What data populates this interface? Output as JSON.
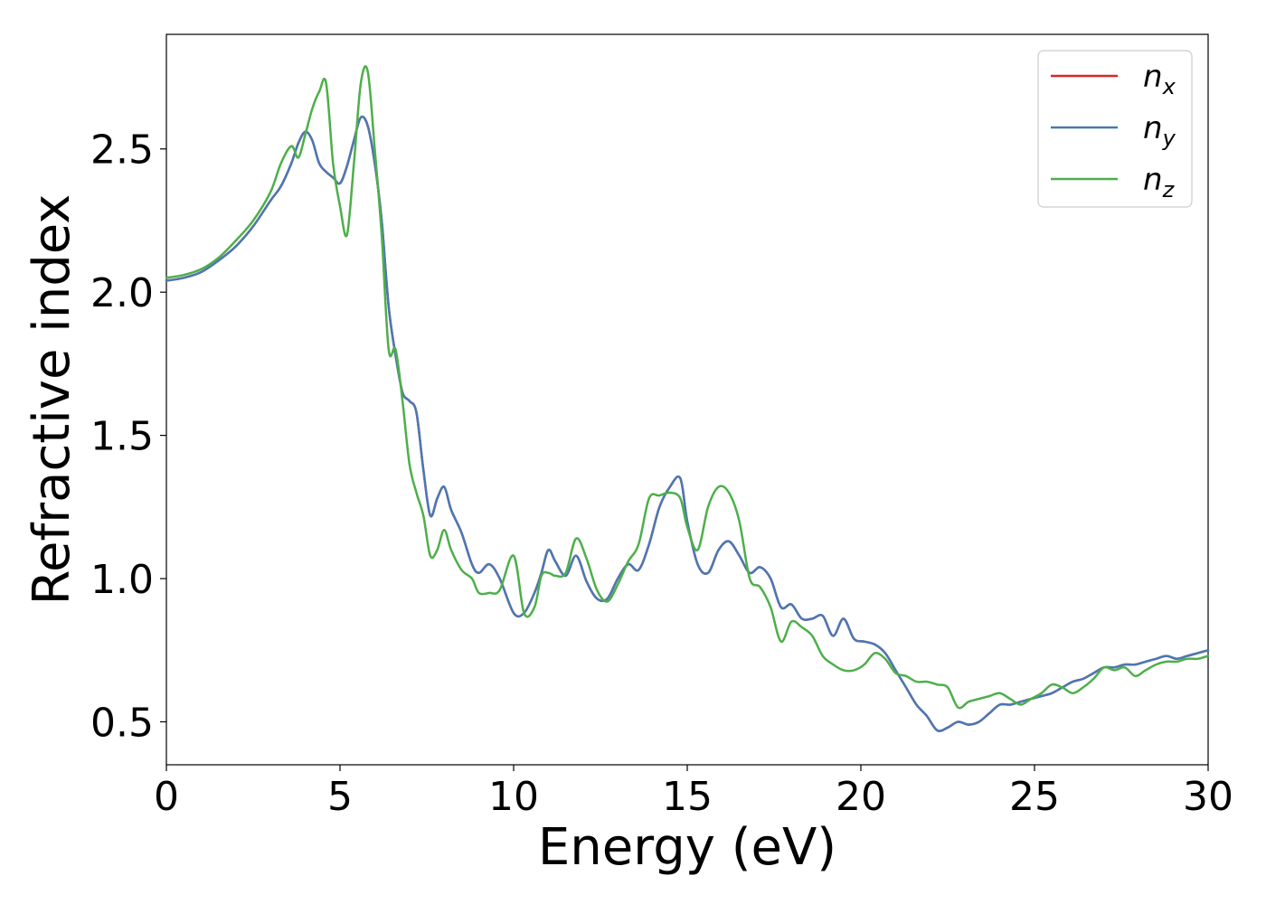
{
  "chart_data": {
    "type": "line",
    "xlabel": "Energy (eV)",
    "ylabel": "Refractive index",
    "xlim": [
      0,
      30
    ],
    "ylim": [
      0.35,
      2.9
    ],
    "xticks": [
      "0",
      "5",
      "10",
      "15",
      "20",
      "25",
      "30"
    ],
    "yticks": [
      "0.5",
      "1.0",
      "1.5",
      "2.0",
      "2.5"
    ],
    "grid": false,
    "legend_position": "top-right",
    "series": [
      {
        "name": "n",
        "subscript": "x",
        "color": "#d62728",
        "x": [
          0,
          0.5,
          1,
          1.5,
          2,
          2.5,
          3,
          3.3,
          3.6,
          3.8,
          4.0,
          4.2,
          4.4,
          4.6,
          4.8,
          5.0,
          5.2,
          5.4,
          5.6,
          5.8,
          6.0,
          6.2,
          6.4,
          6.6,
          6.8,
          7.0,
          7.2,
          7.4,
          7.6,
          7.8,
          8.0,
          8.2,
          8.5,
          8.8,
          9.0,
          9.3,
          9.6,
          10.0,
          10.3,
          10.6,
          10.8,
          11.0,
          11.2,
          11.5,
          11.8,
          12.1,
          12.4,
          12.7,
          13.0,
          13.3,
          13.6,
          13.9,
          14.2,
          14.5,
          14.8,
          15.0,
          15.3,
          15.6,
          15.9,
          16.2,
          16.5,
          16.8,
          17.1,
          17.4,
          17.7,
          18.0,
          18.3,
          18.6,
          18.9,
          19.2,
          19.5,
          19.8,
          20.1,
          20.4,
          20.7,
          21.0,
          21.3,
          21.6,
          21.9,
          22.2,
          22.5,
          22.8,
          23.1,
          23.4,
          23.7,
          24.0,
          24.3,
          24.6,
          24.9,
          25.2,
          25.5,
          25.8,
          26.1,
          26.4,
          26.7,
          27.0,
          27.3,
          27.6,
          27.9,
          28.2,
          28.5,
          28.8,
          29.1,
          29.4,
          29.7,
          30.0
        ],
        "y": [
          2.04,
          2.05,
          2.07,
          2.11,
          2.16,
          2.23,
          2.32,
          2.37,
          2.45,
          2.52,
          2.56,
          2.53,
          2.45,
          2.42,
          2.4,
          2.38,
          2.44,
          2.53,
          2.61,
          2.58,
          2.45,
          2.25,
          1.95,
          1.78,
          1.65,
          1.62,
          1.58,
          1.38,
          1.22,
          1.28,
          1.32,
          1.24,
          1.16,
          1.05,
          1.02,
          1.05,
          1.0,
          0.88,
          0.88,
          0.95,
          1.02,
          1.1,
          1.06,
          1.01,
          1.08,
          0.99,
          0.93,
          0.93,
          1.0,
          1.05,
          1.03,
          1.12,
          1.25,
          1.32,
          1.35,
          1.2,
          1.05,
          1.02,
          1.1,
          1.13,
          1.08,
          1.02,
          1.04,
          1.0,
          0.9,
          0.91,
          0.86,
          0.86,
          0.87,
          0.8,
          0.86,
          0.79,
          0.78,
          0.77,
          0.74,
          0.68,
          0.62,
          0.56,
          0.52,
          0.47,
          0.48,
          0.5,
          0.49,
          0.5,
          0.53,
          0.56,
          0.56,
          0.57,
          0.58,
          0.59,
          0.6,
          0.62,
          0.64,
          0.65,
          0.67,
          0.69,
          0.69,
          0.7,
          0.7,
          0.71,
          0.72,
          0.73,
          0.72,
          0.73,
          0.74,
          0.75
        ]
      },
      {
        "name": "n",
        "subscript": "y",
        "color": "#4a78b5",
        "x": [
          0,
          0.5,
          1,
          1.5,
          2,
          2.5,
          3,
          3.3,
          3.6,
          3.8,
          4.0,
          4.2,
          4.4,
          4.6,
          4.8,
          5.0,
          5.2,
          5.4,
          5.6,
          5.8,
          6.0,
          6.2,
          6.4,
          6.6,
          6.8,
          7.0,
          7.2,
          7.4,
          7.6,
          7.8,
          8.0,
          8.2,
          8.5,
          8.8,
          9.0,
          9.3,
          9.6,
          10.0,
          10.3,
          10.6,
          10.8,
          11.0,
          11.2,
          11.5,
          11.8,
          12.1,
          12.4,
          12.7,
          13.0,
          13.3,
          13.6,
          13.9,
          14.2,
          14.5,
          14.8,
          15.0,
          15.3,
          15.6,
          15.9,
          16.2,
          16.5,
          16.8,
          17.1,
          17.4,
          17.7,
          18.0,
          18.3,
          18.6,
          18.9,
          19.2,
          19.5,
          19.8,
          20.1,
          20.4,
          20.7,
          21.0,
          21.3,
          21.6,
          21.9,
          22.2,
          22.5,
          22.8,
          23.1,
          23.4,
          23.7,
          24.0,
          24.3,
          24.6,
          24.9,
          25.2,
          25.5,
          25.8,
          26.1,
          26.4,
          26.7,
          27.0,
          27.3,
          27.6,
          27.9,
          28.2,
          28.5,
          28.8,
          29.1,
          29.4,
          29.7,
          30.0
        ],
        "y": [
          2.04,
          2.05,
          2.07,
          2.11,
          2.16,
          2.23,
          2.32,
          2.37,
          2.45,
          2.52,
          2.56,
          2.53,
          2.45,
          2.42,
          2.4,
          2.38,
          2.44,
          2.53,
          2.61,
          2.58,
          2.45,
          2.25,
          1.95,
          1.78,
          1.65,
          1.62,
          1.58,
          1.38,
          1.22,
          1.28,
          1.32,
          1.24,
          1.16,
          1.05,
          1.02,
          1.05,
          1.0,
          0.88,
          0.88,
          0.95,
          1.02,
          1.1,
          1.06,
          1.01,
          1.08,
          0.99,
          0.93,
          0.93,
          1.0,
          1.05,
          1.03,
          1.12,
          1.25,
          1.32,
          1.35,
          1.2,
          1.05,
          1.02,
          1.1,
          1.13,
          1.08,
          1.02,
          1.04,
          1.0,
          0.9,
          0.91,
          0.86,
          0.86,
          0.87,
          0.8,
          0.86,
          0.79,
          0.78,
          0.77,
          0.74,
          0.68,
          0.62,
          0.56,
          0.52,
          0.47,
          0.48,
          0.5,
          0.49,
          0.5,
          0.53,
          0.56,
          0.56,
          0.57,
          0.58,
          0.59,
          0.6,
          0.62,
          0.64,
          0.65,
          0.67,
          0.69,
          0.69,
          0.7,
          0.7,
          0.71,
          0.72,
          0.73,
          0.72,
          0.73,
          0.74,
          0.75
        ]
      },
      {
        "name": "n",
        "subscript": "z",
        "color": "#4daf4a",
        "x": [
          0,
          0.5,
          1,
          1.5,
          2,
          2.5,
          3,
          3.3,
          3.6,
          3.8,
          4.0,
          4.2,
          4.4,
          4.6,
          4.8,
          5.0,
          5.2,
          5.4,
          5.6,
          5.8,
          6.0,
          6.2,
          6.4,
          6.6,
          6.8,
          7.0,
          7.2,
          7.4,
          7.6,
          7.8,
          8.0,
          8.2,
          8.5,
          8.8,
          9.0,
          9.3,
          9.6,
          10.0,
          10.3,
          10.6,
          10.8,
          11.0,
          11.2,
          11.5,
          11.8,
          12.1,
          12.4,
          12.7,
          13.0,
          13.3,
          13.6,
          13.9,
          14.2,
          14.5,
          14.8,
          15.0,
          15.3,
          15.6,
          15.9,
          16.2,
          16.5,
          16.8,
          17.1,
          17.4,
          17.7,
          18.0,
          18.3,
          18.6,
          18.9,
          19.2,
          19.5,
          19.8,
          20.1,
          20.4,
          20.7,
          21.0,
          21.3,
          21.6,
          21.9,
          22.2,
          22.5,
          22.8,
          23.1,
          23.4,
          23.7,
          24.0,
          24.3,
          24.6,
          24.9,
          25.2,
          25.5,
          25.8,
          26.1,
          26.4,
          26.7,
          27.0,
          27.3,
          27.6,
          27.9,
          28.2,
          28.5,
          28.8,
          29.1,
          29.4,
          29.7,
          30.0
        ],
        "y": [
          2.05,
          2.06,
          2.08,
          2.12,
          2.18,
          2.25,
          2.35,
          2.45,
          2.51,
          2.47,
          2.55,
          2.64,
          2.7,
          2.73,
          2.45,
          2.3,
          2.2,
          2.45,
          2.73,
          2.77,
          2.5,
          2.2,
          1.8,
          1.8,
          1.62,
          1.4,
          1.3,
          1.22,
          1.08,
          1.1,
          1.17,
          1.1,
          1.03,
          1.0,
          0.95,
          0.95,
          0.96,
          1.08,
          0.88,
          0.9,
          1.01,
          1.02,
          1.01,
          1.02,
          1.14,
          1.07,
          0.96,
          0.92,
          0.98,
          1.06,
          1.12,
          1.28,
          1.29,
          1.3,
          1.28,
          1.18,
          1.1,
          1.25,
          1.32,
          1.3,
          1.2,
          1.0,
          0.97,
          0.9,
          0.78,
          0.85,
          0.83,
          0.8,
          0.73,
          0.7,
          0.68,
          0.68,
          0.7,
          0.74,
          0.72,
          0.67,
          0.66,
          0.64,
          0.64,
          0.63,
          0.62,
          0.55,
          0.57,
          0.58,
          0.59,
          0.6,
          0.58,
          0.56,
          0.58,
          0.6,
          0.63,
          0.62,
          0.6,
          0.62,
          0.65,
          0.69,
          0.68,
          0.69,
          0.66,
          0.68,
          0.7,
          0.71,
          0.71,
          0.72,
          0.72,
          0.73
        ]
      }
    ]
  }
}
